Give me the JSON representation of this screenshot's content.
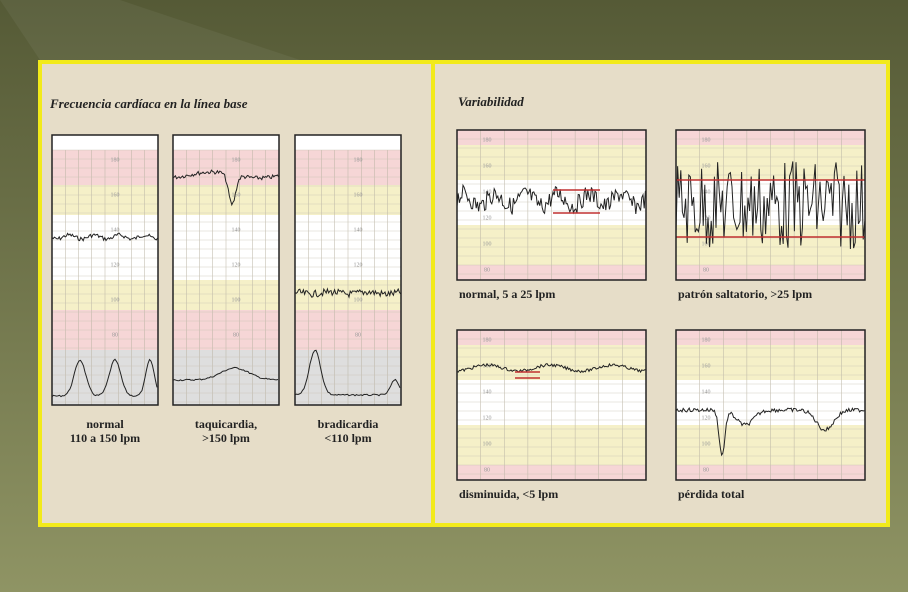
{
  "left": {
    "title": "Frecuencia cardíaca en la línea base",
    "scale": [
      "180",
      "160",
      "140",
      "120",
      "100",
      "80"
    ],
    "strips": [
      {
        "caption": [
          "normal",
          "110 a 150 lpm"
        ]
      },
      {
        "caption": [
          "taquicardia,",
          ">150 lpm"
        ]
      },
      {
        "caption": [
          "bradicardia",
          "<110 lpm"
        ]
      }
    ]
  },
  "right": {
    "title": "Variabilidad",
    "scale": [
      "180",
      "160",
      "140",
      "120",
      "100",
      "80"
    ],
    "panels": [
      {
        "caption": "normal, 5 a 25 lpm"
      },
      {
        "caption": "patrón saltatorio, >25 lpm"
      },
      {
        "caption": "disminuida, <5 lpm"
      },
      {
        "caption": "pérdida total"
      }
    ]
  }
}
